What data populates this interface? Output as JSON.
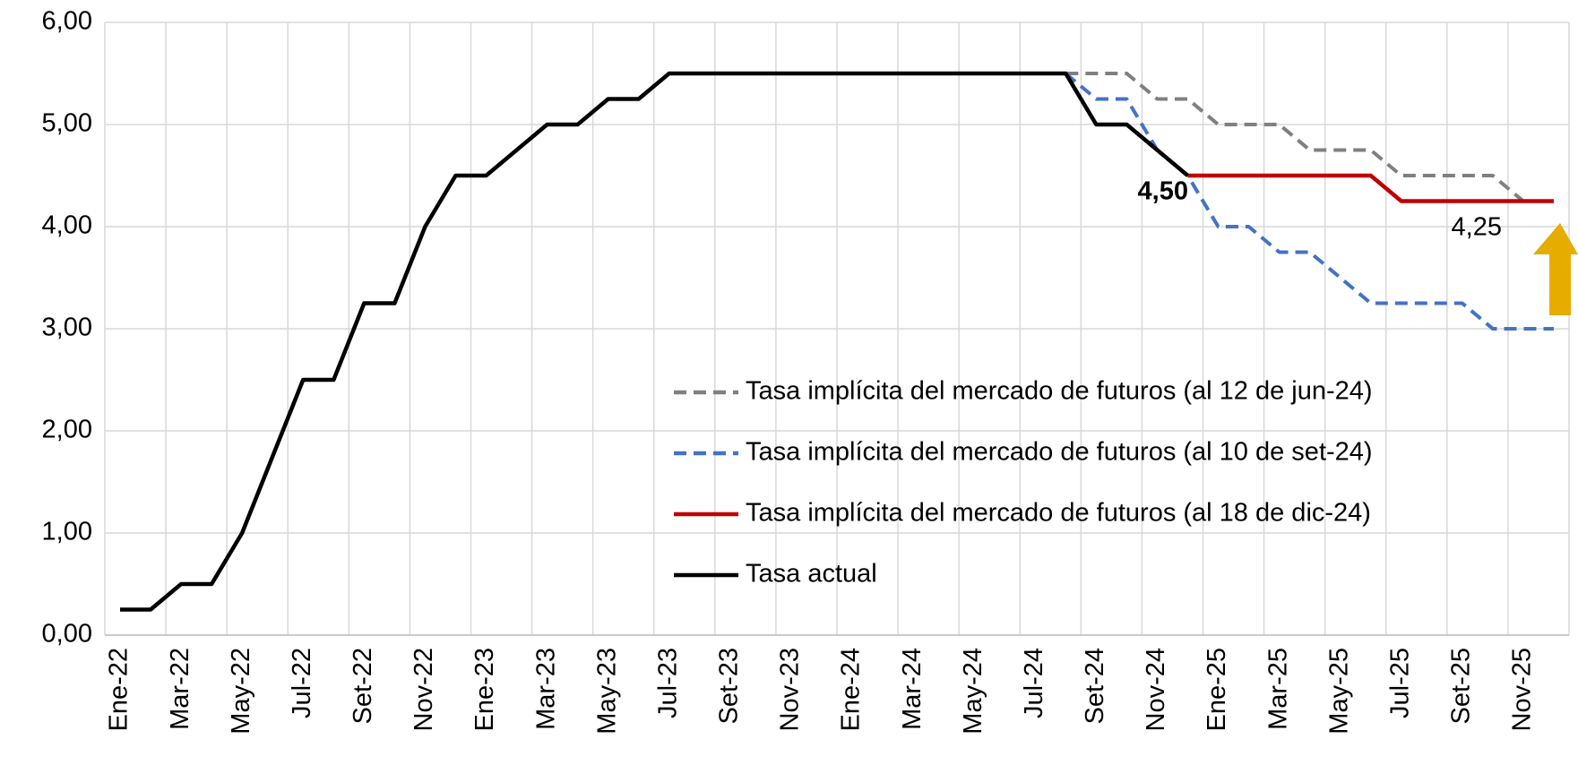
{
  "chart_data": {
    "type": "line",
    "categories": [
      "Ene-22",
      null,
      "Mar-22",
      null,
      "May-22",
      null,
      "Jul-22",
      null,
      "Set-22",
      null,
      "Nov-22",
      null,
      "Ene-23",
      null,
      "Mar-23",
      null,
      "May-23",
      null,
      "Jul-23",
      null,
      "Set-23",
      null,
      "Nov-23",
      null,
      "Ene-24",
      null,
      "Mar-24",
      null,
      "May-24",
      null,
      "Jul-24",
      null,
      "Set-24",
      null,
      "Nov-24",
      null,
      "Ene-25",
      null,
      "Mar-25",
      null,
      "May-25",
      null,
      "Jul-25",
      null,
      "Set-25",
      null,
      "Nov-25",
      null
    ],
    "series": [
      {
        "name": "Tasa implícita del mercado de futuros (al 12 de jun-24)",
        "color": "#808080",
        "style": "dashed",
        "values": [
          null,
          null,
          null,
          null,
          null,
          null,
          null,
          null,
          null,
          null,
          null,
          null,
          null,
          null,
          null,
          null,
          null,
          null,
          null,
          null,
          null,
          null,
          null,
          null,
          null,
          null,
          null,
          null,
          null,
          null,
          null,
          5.5,
          5.5,
          5.5,
          5.25,
          5.25,
          5.0,
          5.0,
          5.0,
          4.75,
          4.75,
          4.75,
          4.5,
          4.5,
          4.5,
          4.5,
          4.25,
          4.25
        ]
      },
      {
        "name": "Tasa implícita del mercado de futuros (al 10 de set-24)",
        "color": "#4472c4",
        "style": "dashed",
        "values": [
          null,
          null,
          null,
          null,
          null,
          null,
          null,
          null,
          null,
          null,
          null,
          null,
          null,
          null,
          null,
          null,
          null,
          null,
          null,
          null,
          null,
          null,
          null,
          null,
          null,
          null,
          null,
          null,
          null,
          null,
          null,
          5.5,
          5.25,
          5.25,
          4.75,
          4.5,
          4.0,
          4.0,
          3.75,
          3.75,
          3.5,
          3.25,
          3.25,
          3.25,
          3.25,
          3.0,
          3.0,
          3.0
        ]
      },
      {
        "name": "Tasa implícita del mercado de futuros (al 18 de dic-24)",
        "color": "#c00000",
        "style": "solid",
        "values": [
          null,
          null,
          null,
          null,
          null,
          null,
          null,
          null,
          null,
          null,
          null,
          null,
          null,
          null,
          null,
          null,
          null,
          null,
          null,
          null,
          null,
          null,
          null,
          null,
          null,
          null,
          null,
          null,
          null,
          null,
          null,
          null,
          null,
          null,
          null,
          4.5,
          4.5,
          4.5,
          4.5,
          4.5,
          4.5,
          4.5,
          4.25,
          4.25,
          4.25,
          4.25,
          4.25,
          4.25
        ]
      },
      {
        "name": "Tasa actual",
        "color": "#000000",
        "style": "solid",
        "values": [
          0.25,
          0.25,
          0.5,
          0.5,
          1.0,
          1.75,
          2.5,
          2.5,
          3.25,
          3.25,
          4.0,
          4.5,
          4.5,
          4.75,
          5.0,
          5.0,
          5.25,
          5.25,
          5.5,
          5.5,
          5.5,
          5.5,
          5.5,
          5.5,
          5.5,
          5.5,
          5.5,
          5.5,
          5.5,
          5.5,
          5.5,
          5.5,
          5.0,
          5.0,
          4.75,
          4.5,
          null,
          null,
          null,
          null,
          null,
          null,
          null,
          null,
          null,
          null,
          null,
          null
        ]
      }
    ],
    "ylim": [
      0,
      6
    ],
    "yticks": [
      {
        "value": 0,
        "label": "0,00"
      },
      {
        "value": 1,
        "label": "1,00"
      },
      {
        "value": 2,
        "label": "2,00"
      },
      {
        "value": 3,
        "label": "3,00"
      },
      {
        "value": 4,
        "label": "4,00"
      },
      {
        "value": 5,
        "label": "5,00"
      },
      {
        "value": 6,
        "label": "6,00"
      }
    ],
    "grid": true,
    "legend": "lower right",
    "annotations": [
      {
        "text": "4,50",
        "color": "#000000"
      },
      {
        "text": "4,25",
        "color": "#c00000"
      }
    ]
  }
}
